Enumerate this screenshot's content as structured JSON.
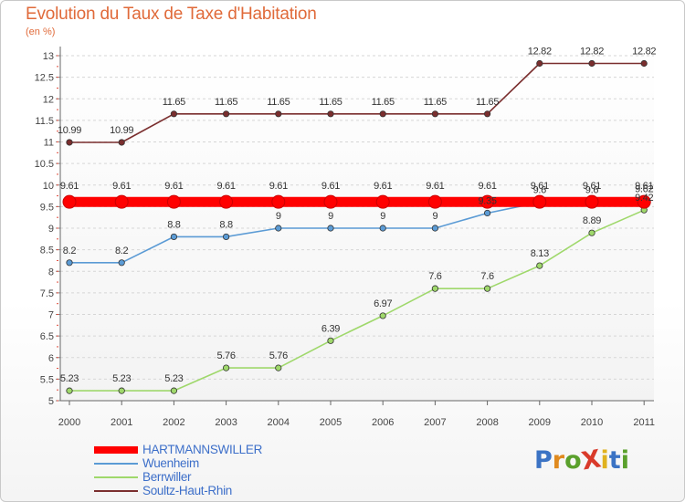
{
  "title": "Evolution du Taux de Taxe d'Habitation",
  "subtitle": "(en %)",
  "logo": {
    "text": "ProXiti",
    "letter_colors": [
      "#3b73c4",
      "#e08a1e",
      "#5aa02c",
      "#d93a2a",
      "#e0b21e",
      "#3b73c4",
      "#5aa02c"
    ]
  },
  "chart_data": {
    "type": "line",
    "categories": [
      "2000",
      "2001",
      "2002",
      "2003",
      "2004",
      "2005",
      "2006",
      "2007",
      "2008",
      "2009",
      "2010",
      "2011"
    ],
    "ylim": [
      5,
      13
    ],
    "y_ticks": [
      "5",
      "5.5",
      "6",
      "6.5",
      "7",
      "7.5",
      "8",
      "8.5",
      "9",
      "9.5",
      "10",
      "10.5",
      "11",
      "11.5",
      "12",
      "12.5",
      "13"
    ],
    "grid": "dashed horizontal at each tick",
    "legend_position": "bottom-left",
    "series": [
      {
        "name": "HARTMANNSWILLER",
        "color": "#ff0000",
        "values": [
          9.61,
          9.61,
          9.61,
          9.61,
          9.61,
          9.61,
          9.61,
          9.61,
          9.61,
          9.61,
          9.61,
          9.61
        ],
        "labels": [
          "9.61",
          "9.61",
          "9.61",
          "9.61",
          "9.61",
          "9.61",
          "9.61",
          "9.61",
          "9.61",
          "9.61",
          "9.61",
          "9.61"
        ]
      },
      {
        "name": "Wuenheim",
        "color": "#5b9bd5",
        "values": [
          8.2,
          8.2,
          8.8,
          8.8,
          9,
          9,
          9,
          9,
          9.35,
          9.6,
          9.6,
          9.62
        ],
        "labels": [
          "8.2",
          "8.2",
          "8.8",
          "8.8",
          "9",
          "9",
          "9",
          "9",
          "9.35",
          "9.6",
          "9.6",
          "9.62"
        ]
      },
      {
        "name": "Berrwiller",
        "color": "#9fd86b",
        "values": [
          5.23,
          5.23,
          5.23,
          5.76,
          5.76,
          6.39,
          6.97,
          7.6,
          7.6,
          8.13,
          8.89,
          9.42
        ],
        "labels": [
          "5.23",
          "5.23",
          "5.23",
          "5.76",
          "5.76",
          "6.39",
          "6.97",
          "7.6",
          "7.6",
          "8.13",
          "8.89",
          "9.42"
        ]
      },
      {
        "name": "Soultz-Haut-Rhin",
        "color": "#7a2e2e",
        "values": [
          10.99,
          10.99,
          11.65,
          11.65,
          11.65,
          11.65,
          11.65,
          11.65,
          11.65,
          12.82,
          12.82,
          12.82
        ],
        "labels": [
          "10.99",
          "10.99",
          "11.65",
          "11.65",
          "11.65",
          "11.65",
          "11.65",
          "11.65",
          "11.65",
          "12.82",
          "12.82",
          "12.82"
        ]
      }
    ]
  }
}
